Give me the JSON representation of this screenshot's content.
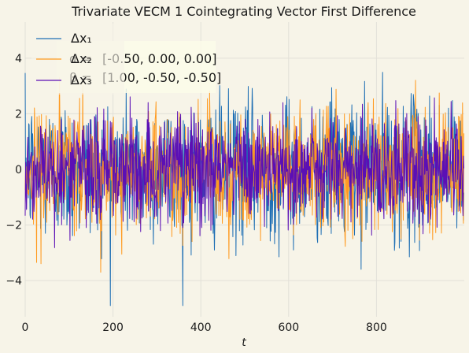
{
  "chart_data": {
    "type": "line",
    "title": "Trivariate VECM 1 Cointegrating Vector First Difference",
    "xlabel": "t",
    "ylabel": "",
    "xlim": [
      0,
      1000
    ],
    "ylim": [
      -5.3,
      5.3
    ],
    "x_ticks": [
      0,
      200,
      400,
      600,
      800
    ],
    "y_ticks": [
      -4,
      -2,
      0,
      2,
      4
    ],
    "grid": true,
    "legend_position": "top-left",
    "annotations": [
      {
        "label": "α = ",
        "value": "[-0.50, 0.00, 0.00]"
      },
      {
        "label": "β = ",
        "value": "[1.00, -0.50, -0.50]"
      }
    ],
    "series": [
      {
        "name": "Δx₁",
        "color": "#1f6fb4",
        "n": 1000,
        "approx_std": 1.25,
        "min": -4.9,
        "max": 4.6
      },
      {
        "name": "Δx₂",
        "color": "#ff9a1f",
        "n": 1000,
        "approx_std": 1.1,
        "min": -3.7,
        "max": 3.3
      },
      {
        "name": "Δx₃",
        "color": "#5b0fb5",
        "n": 1000,
        "approx_std": 1.0,
        "min": -3.0,
        "max": 3.0
      }
    ]
  }
}
